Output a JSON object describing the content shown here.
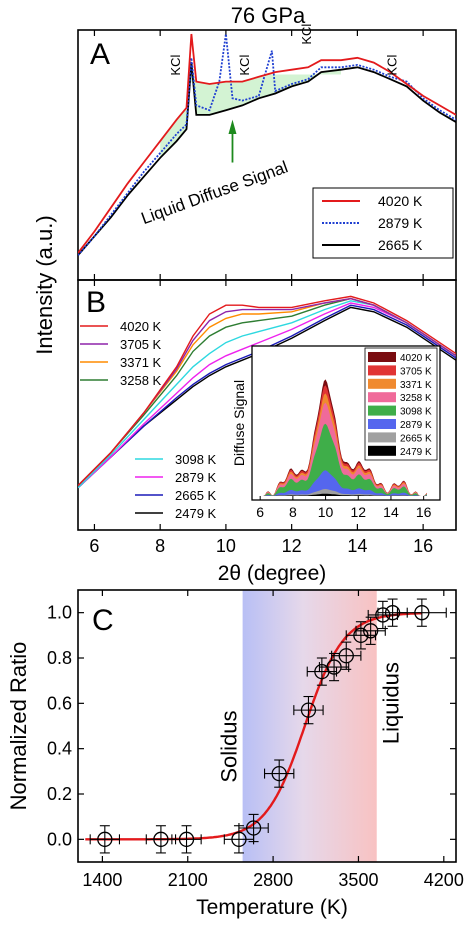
{
  "figure": {
    "title": "76 GPa",
    "shared_ylabel": "Intensity (a.u.)"
  },
  "chart_data": [
    {
      "panel": "A",
      "type": "line",
      "xlim": [
        5.5,
        17
      ],
      "x_ticks": [
        6,
        8,
        10,
        12,
        14,
        16
      ],
      "grid": false,
      "legend_position": "bottom-right",
      "annotations": [
        "KCl",
        "KCl",
        "KCl",
        "KCl",
        "Liquid Diffuse Signal"
      ],
      "kcl_peaks_2theta": [
        8.9,
        11.0,
        12.9,
        15.5
      ],
      "series": [
        {
          "name": "4020 K",
          "color": "#e31a1c",
          "style": "solid",
          "x": [
            5.5,
            6.0,
            6.5,
            7.0,
            7.5,
            8.0,
            8.5,
            8.8,
            8.95,
            9.1,
            9.5,
            10.0,
            10.5,
            11.0,
            11.5,
            12.0,
            12.5,
            12.9,
            13.5,
            14.0,
            14.5,
            15.0,
            15.5,
            16.0,
            16.5,
            17.0
          ],
          "y": [
            0.08,
            0.17,
            0.27,
            0.37,
            0.46,
            0.55,
            0.64,
            0.69,
            1.0,
            0.8,
            0.79,
            0.8,
            0.8,
            0.82,
            0.84,
            0.85,
            0.86,
            0.89,
            0.89,
            0.9,
            0.88,
            0.84,
            0.79,
            0.74,
            0.7,
            0.66
          ]
        },
        {
          "name": "2879 K",
          "color": "#1f3fd1",
          "style": "dotted",
          "x": [
            5.5,
            6.0,
            6.5,
            7.0,
            7.5,
            8.0,
            8.5,
            8.8,
            8.95,
            9.1,
            9.5,
            9.8,
            10.0,
            10.2,
            10.5,
            11.0,
            11.4,
            11.5,
            12.0,
            12.5,
            12.9,
            13.5,
            14.0,
            14.5,
            15.0,
            15.5,
            16.0,
            16.5,
            17.0
          ],
          "y": [
            0.07,
            0.15,
            0.24,
            0.33,
            0.42,
            0.5,
            0.58,
            0.62,
            0.9,
            0.7,
            0.68,
            0.8,
            1.0,
            0.73,
            0.72,
            0.74,
            0.93,
            0.76,
            0.79,
            0.81,
            0.86,
            0.86,
            0.87,
            0.85,
            0.82,
            0.8,
            0.73,
            0.68,
            0.64
          ]
        },
        {
          "name": "2665 K",
          "color": "#000000",
          "style": "solid",
          "x": [
            5.5,
            6.0,
            6.5,
            7.0,
            7.5,
            8.0,
            8.5,
            8.8,
            8.95,
            9.1,
            9.5,
            10.0,
            10.5,
            11.0,
            11.5,
            12.0,
            12.5,
            12.9,
            13.5,
            14.0,
            14.5,
            15.0,
            15.5,
            16.0,
            16.5,
            17.0
          ],
          "y": [
            0.07,
            0.15,
            0.23,
            0.32,
            0.4,
            0.48,
            0.55,
            0.6,
            0.88,
            0.66,
            0.66,
            0.68,
            0.7,
            0.73,
            0.75,
            0.78,
            0.8,
            0.84,
            0.85,
            0.86,
            0.84,
            0.81,
            0.78,
            0.72,
            0.67,
            0.63
          ]
        }
      ]
    },
    {
      "panel": "B",
      "type": "line",
      "xlabel": "2θ (degree)",
      "xlim": [
        5.5,
        17
      ],
      "x_ticks": [
        6,
        8,
        10,
        12,
        14,
        16
      ],
      "grid": false,
      "legend_position": "left",
      "series": [
        {
          "name": "4020 K",
          "color": "#e31a1c",
          "x": [
            5.5,
            6.5,
            7.5,
            8.5,
            9.0,
            9.5,
            10.0,
            10.5,
            11.0,
            12.0,
            13.0,
            13.8,
            14.5,
            15.5,
            16.5,
            17.0
          ],
          "y": [
            0.12,
            0.27,
            0.45,
            0.66,
            0.8,
            0.9,
            0.94,
            0.94,
            0.93,
            0.93,
            0.96,
            0.98,
            0.95,
            0.87,
            0.77,
            0.72
          ]
        },
        {
          "name": "3705 K",
          "color": "#8e24aa",
          "x": [
            5.5,
            6.5,
            7.5,
            8.5,
            9.0,
            9.5,
            10.0,
            10.5,
            11.0,
            12.0,
            13.0,
            13.8,
            14.5,
            15.5,
            16.5,
            17.0
          ],
          "y": [
            0.12,
            0.27,
            0.45,
            0.65,
            0.78,
            0.87,
            0.91,
            0.92,
            0.92,
            0.92,
            0.95,
            0.97,
            0.94,
            0.86,
            0.76,
            0.71
          ]
        },
        {
          "name": "3371 K",
          "color": "#ff8c00",
          "x": [
            5.5,
            6.5,
            7.5,
            8.5,
            9.0,
            9.5,
            10.0,
            10.5,
            11.0,
            12.0,
            13.0,
            13.8,
            14.5,
            15.5,
            16.5,
            17.0
          ],
          "y": [
            0.12,
            0.27,
            0.45,
            0.64,
            0.76,
            0.84,
            0.88,
            0.9,
            0.9,
            0.91,
            0.95,
            0.97,
            0.94,
            0.86,
            0.76,
            0.71
          ]
        },
        {
          "name": "3258 K",
          "color": "#2e7d32",
          "x": [
            5.5,
            6.5,
            7.5,
            8.5,
            9.0,
            9.5,
            10.0,
            10.5,
            11.0,
            12.0,
            13.0,
            13.8,
            14.5,
            15.5,
            16.5,
            17.0
          ],
          "y": [
            0.12,
            0.27,
            0.44,
            0.62,
            0.73,
            0.8,
            0.84,
            0.86,
            0.87,
            0.89,
            0.94,
            0.97,
            0.94,
            0.86,
            0.76,
            0.71
          ]
        },
        {
          "name": "3098 K",
          "color": "#2ed8e0",
          "x": [
            5.5,
            6.5,
            7.5,
            8.5,
            9.0,
            9.5,
            10.0,
            10.5,
            11.0,
            12.0,
            13.0,
            13.8,
            14.5,
            15.5,
            16.5,
            17.0
          ],
          "y": [
            0.11,
            0.26,
            0.42,
            0.58,
            0.66,
            0.72,
            0.77,
            0.8,
            0.82,
            0.86,
            0.92,
            0.96,
            0.94,
            0.86,
            0.76,
            0.71
          ]
        },
        {
          "name": "2879 K",
          "color": "#ee22ee",
          "x": [
            5.5,
            6.5,
            7.5,
            8.5,
            9.0,
            9.5,
            10.0,
            10.5,
            11.0,
            12.0,
            13.0,
            13.8,
            14.5,
            15.5,
            16.5,
            17.0
          ],
          "y": [
            0.11,
            0.25,
            0.4,
            0.54,
            0.61,
            0.67,
            0.71,
            0.74,
            0.77,
            0.83,
            0.9,
            0.95,
            0.93,
            0.86,
            0.76,
            0.71
          ]
        },
        {
          "name": "2665 K",
          "color": "#1a1ab8",
          "x": [
            5.5,
            6.5,
            7.5,
            8.5,
            9.0,
            9.5,
            10.0,
            10.5,
            11.0,
            12.0,
            13.0,
            13.8,
            14.5,
            15.5,
            16.5,
            17.0
          ],
          "y": [
            0.11,
            0.25,
            0.39,
            0.52,
            0.58,
            0.63,
            0.67,
            0.7,
            0.73,
            0.8,
            0.88,
            0.94,
            0.92,
            0.85,
            0.75,
            0.7
          ]
        },
        {
          "name": "2479 K",
          "color": "#000000",
          "x": [
            5.5,
            6.5,
            7.5,
            8.5,
            9.0,
            9.5,
            10.0,
            10.5,
            11.0,
            12.0,
            13.0,
            13.8,
            14.5,
            15.5,
            16.5,
            17.0
          ],
          "y": [
            0.11,
            0.25,
            0.39,
            0.51,
            0.57,
            0.62,
            0.66,
            0.69,
            0.72,
            0.79,
            0.87,
            0.93,
            0.91,
            0.84,
            0.74,
            0.69
          ]
        }
      ]
    },
    {
      "panel": "B inset",
      "type": "area",
      "ylabel": "Diffuse Signal",
      "xlim": [
        5.5,
        17
      ],
      "x_ticks": [
        6,
        8,
        10,
        12,
        14,
        16
      ],
      "legend_position": "top-right",
      "series": [
        {
          "name": "4020 K",
          "color": "#7a0c10",
          "peak": 1.0
        },
        {
          "name": "3705 K",
          "color": "#e13434",
          "peak": 0.95
        },
        {
          "name": "3371 K",
          "color": "#f08a30",
          "peak": 0.88
        },
        {
          "name": "3258 K",
          "color": "#f06a9a",
          "peak": 0.8
        },
        {
          "name": "3098 K",
          "color": "#3fae49",
          "peak": 0.62
        },
        {
          "name": "2879 K",
          "color": "#5566ee",
          "peak": 0.22
        },
        {
          "name": "2665 K",
          "color": "#a0a0a0",
          "peak": 0.06
        },
        {
          "name": "2479 K",
          "color": "#000000",
          "peak": 0.02
        }
      ]
    },
    {
      "panel": "C",
      "type": "scatter",
      "xlabel": "Temperature (K)",
      "ylabel": "Normalized Ratio",
      "xlim": [
        1200,
        4300
      ],
      "ylim": [
        -0.1,
        1.1
      ],
      "x_ticks": [
        1400,
        2100,
        2800,
        3500,
        4200
      ],
      "y_ticks": [
        0.0,
        0.2,
        0.4,
        0.6,
        0.8,
        1.0
      ],
      "solidus_K": 2550,
      "liquidus_K": 3650,
      "annotations": [
        "Solidus",
        "Liquidus"
      ],
      "points": {
        "x": [
          1420,
          1880,
          2090,
          2520,
          2640,
          2850,
          3090,
          3200,
          3300,
          3400,
          3520,
          3600,
          3700,
          3780,
          4020
        ],
        "y": [
          0.0,
          0.0,
          0.0,
          0.0,
          0.05,
          0.29,
          0.57,
          0.74,
          0.76,
          0.81,
          0.9,
          0.92,
          0.99,
          1.0,
          1.0
        ],
        "xerr": [
          120,
          120,
          120,
          120,
          120,
          120,
          120,
          120,
          120,
          120,
          120,
          120,
          120,
          120,
          200
        ],
        "yerr": [
          0.06,
          0.06,
          0.06,
          0.06,
          0.06,
          0.06,
          0.06,
          0.06,
          0.06,
          0.06,
          0.06,
          0.06,
          0.06,
          0.06,
          0.06
        ]
      },
      "fit": {
        "color": "#e31a1c",
        "model": "sigmoid",
        "midpoint_K": 3060,
        "width_K": 160
      }
    }
  ]
}
